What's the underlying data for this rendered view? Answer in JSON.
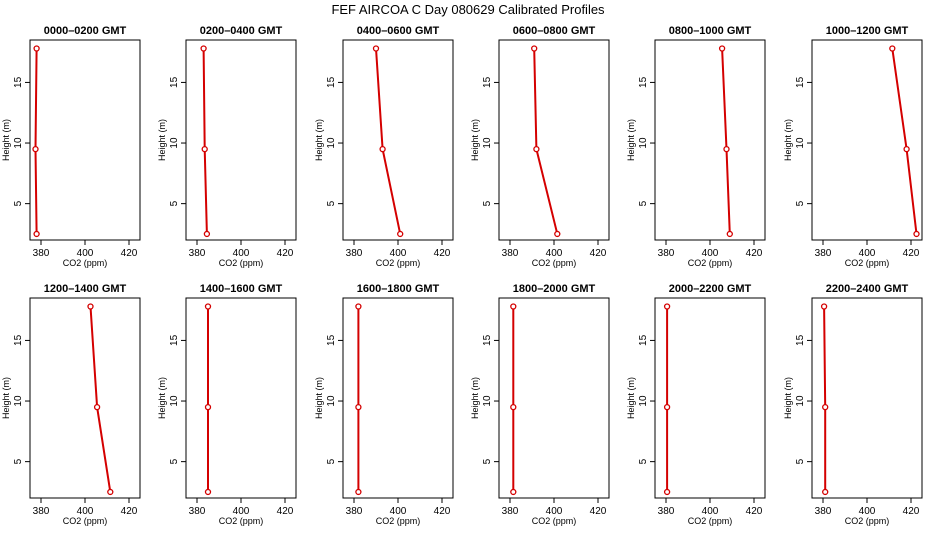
{
  "figure": {
    "title": "FEF AIRCOA C  Day 080629  Calibrated Profiles"
  },
  "chart_data": [
    {
      "type": "line",
      "title": "0000–0200 GMT",
      "xlabel": "CO2 (ppm)",
      "ylabel": "Height (m)",
      "xlim": [
        375,
        425
      ],
      "ylim": [
        2,
        18.5
      ],
      "xticks": [
        380,
        400,
        420
      ],
      "yticks": [
        5,
        10,
        15
      ],
      "series": [
        {
          "x": [
            378,
            377.5,
            378
          ],
          "y": [
            2.5,
            9.5,
            17.8
          ]
        }
      ],
      "color": "#d40000"
    },
    {
      "type": "line",
      "title": "0200–0400 GMT",
      "xlabel": "CO2 (ppm)",
      "ylabel": "Height (m)",
      "xlim": [
        375,
        425
      ],
      "ylim": [
        2,
        18.5
      ],
      "xticks": [
        380,
        400,
        420
      ],
      "yticks": [
        5,
        10,
        15
      ],
      "series": [
        {
          "x": [
            384.5,
            383.5,
            383
          ],
          "y": [
            2.5,
            9.5,
            17.8
          ]
        }
      ],
      "color": "#d40000"
    },
    {
      "type": "line",
      "title": "0400–0600 GMT",
      "xlabel": "CO2 (ppm)",
      "ylabel": "Height (m)",
      "xlim": [
        375,
        425
      ],
      "ylim": [
        2,
        18.5
      ],
      "xticks": [
        380,
        400,
        420
      ],
      "yticks": [
        5,
        10,
        15
      ],
      "series": [
        {
          "x": [
            401,
            393,
            390
          ],
          "y": [
            2.5,
            9.5,
            17.8
          ]
        }
      ],
      "color": "#d40000"
    },
    {
      "type": "line",
      "title": "0600–0800 GMT",
      "xlabel": "CO2 (ppm)",
      "ylabel": "Height (m)",
      "xlim": [
        375,
        425
      ],
      "ylim": [
        2,
        18.5
      ],
      "xticks": [
        380,
        400,
        420
      ],
      "yticks": [
        5,
        10,
        15
      ],
      "series": [
        {
          "x": [
            401.5,
            392,
            391
          ],
          "y": [
            2.5,
            9.5,
            17.8
          ]
        }
      ],
      "color": "#d40000"
    },
    {
      "type": "line",
      "title": "0800–1000 GMT",
      "xlabel": "CO2 (ppm)",
      "ylabel": "Height (m)",
      "xlim": [
        375,
        425
      ],
      "ylim": [
        2,
        18.5
      ],
      "xticks": [
        380,
        400,
        420
      ],
      "yticks": [
        5,
        10,
        15
      ],
      "series": [
        {
          "x": [
            409,
            407.5,
            405.5
          ],
          "y": [
            2.5,
            9.5,
            17.8
          ]
        }
      ],
      "color": "#d40000"
    },
    {
      "type": "line",
      "title": "1000–1200 GMT",
      "xlabel": "CO2 (ppm)",
      "ylabel": "Height (m)",
      "xlim": [
        375,
        425
      ],
      "ylim": [
        2,
        18.5
      ],
      "xticks": [
        380,
        400,
        420
      ],
      "yticks": [
        5,
        10,
        15
      ],
      "series": [
        {
          "x": [
            422.5,
            418,
            411.5
          ],
          "y": [
            2.5,
            9.5,
            17.8
          ]
        }
      ],
      "color": "#d40000"
    },
    {
      "type": "line",
      "title": "1200–1400 GMT",
      "xlabel": "CO2 (ppm)",
      "ylabel": "Height (m)",
      "xlim": [
        375,
        425
      ],
      "ylim": [
        2,
        18.5
      ],
      "xticks": [
        380,
        400,
        420
      ],
      "yticks": [
        5,
        10,
        15
      ],
      "series": [
        {
          "x": [
            411.5,
            405.5,
            402.5
          ],
          "y": [
            2.5,
            9.5,
            17.8
          ]
        }
      ],
      "color": "#d40000"
    },
    {
      "type": "line",
      "title": "1400–1600 GMT",
      "xlabel": "CO2 (ppm)",
      "ylabel": "Height (m)",
      "xlim": [
        375,
        425
      ],
      "ylim": [
        2,
        18.5
      ],
      "xticks": [
        380,
        400,
        420
      ],
      "yticks": [
        5,
        10,
        15
      ],
      "series": [
        {
          "x": [
            385,
            385,
            385
          ],
          "y": [
            2.5,
            9.5,
            17.8
          ]
        }
      ],
      "color": "#d40000"
    },
    {
      "type": "line",
      "title": "1600–1800 GMT",
      "xlabel": "CO2 (ppm)",
      "ylabel": "Height (m)",
      "xlim": [
        375,
        425
      ],
      "ylim": [
        2,
        18.5
      ],
      "xticks": [
        380,
        400,
        420
      ],
      "yticks": [
        5,
        10,
        15
      ],
      "series": [
        {
          "x": [
            382,
            382,
            382
          ],
          "y": [
            2.5,
            9.5,
            17.8
          ]
        }
      ],
      "color": "#d40000"
    },
    {
      "type": "line",
      "title": "1800–2000 GMT",
      "xlabel": "CO2 (ppm)",
      "ylabel": "Height (m)",
      "xlim": [
        375,
        425
      ],
      "ylim": [
        2,
        18.5
      ],
      "xticks": [
        380,
        400,
        420
      ],
      "yticks": [
        5,
        10,
        15
      ],
      "series": [
        {
          "x": [
            381.5,
            381.5,
            381.5
          ],
          "y": [
            2.5,
            9.5,
            17.8
          ]
        }
      ],
      "color": "#d40000"
    },
    {
      "type": "line",
      "title": "2000–2200 GMT",
      "xlabel": "CO2 (ppm)",
      "ylabel": "Height (m)",
      "xlim": [
        375,
        425
      ],
      "ylim": [
        2,
        18.5
      ],
      "xticks": [
        380,
        400,
        420
      ],
      "yticks": [
        5,
        10,
        15
      ],
      "series": [
        {
          "x": [
            380.5,
            380.5,
            380.5
          ],
          "y": [
            2.5,
            9.5,
            17.8
          ]
        }
      ],
      "color": "#d40000"
    },
    {
      "type": "line",
      "title": "2200–2400 GMT",
      "xlabel": "CO2 (ppm)",
      "ylabel": "Height (m)",
      "xlim": [
        375,
        425
      ],
      "ylim": [
        2,
        18.5
      ],
      "xticks": [
        380,
        400,
        420
      ],
      "yticks": [
        5,
        10,
        15
      ],
      "series": [
        {
          "x": [
            381,
            381,
            380.5
          ],
          "y": [
            2.5,
            9.5,
            17.8
          ]
        }
      ],
      "color": "#d40000"
    }
  ]
}
